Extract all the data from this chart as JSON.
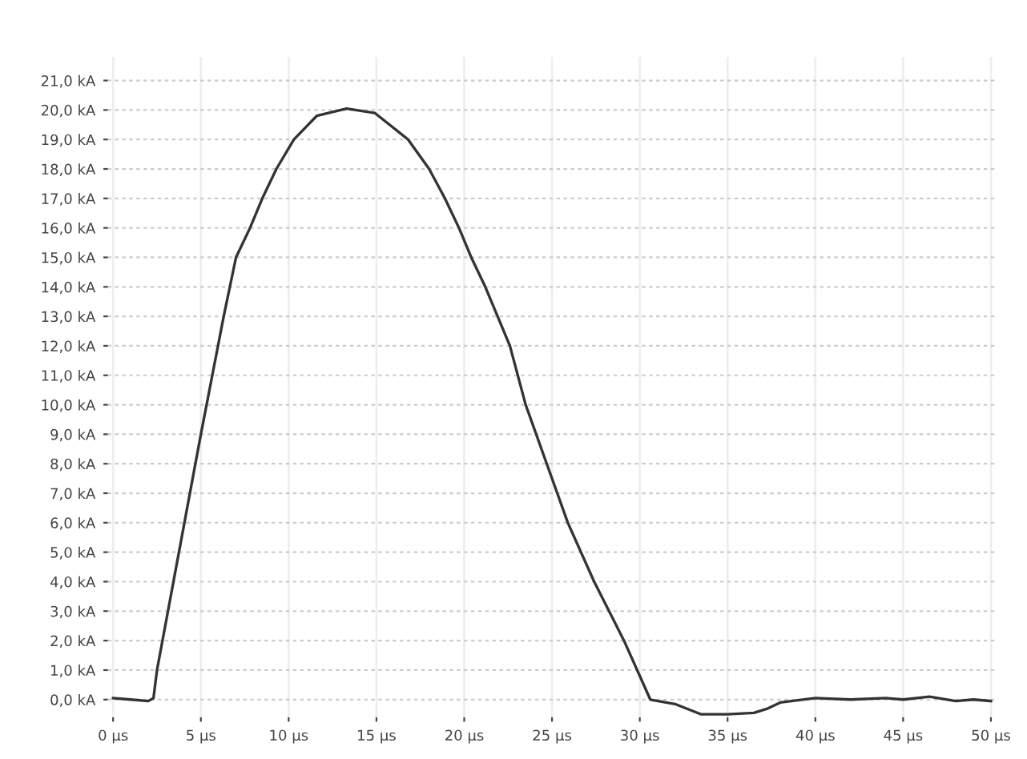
{
  "chart_data": {
    "type": "line",
    "x": [
      0,
      1,
      2,
      2.3,
      2.5,
      3.5,
      5.0,
      5.65,
      6.3,
      7.0,
      7.8,
      8.5,
      9.3,
      10.3,
      11.6,
      13.3,
      14.9,
      16.8,
      18.0,
      18.9,
      19.7,
      20.4,
      21.2,
      21.9,
      22.6,
      23.5,
      24.7,
      25.9,
      27.4,
      29.1,
      30.6,
      32,
      33.5,
      35,
      36.5,
      37.3,
      38,
      40,
      42,
      44,
      45,
      46.5,
      48,
      49,
      50
    ],
    "series": [
      {
        "color": "#333333",
        "values": [
          0.05,
          0.0,
          -0.05,
          0.05,
          1.0,
          4.2,
          9.0,
          11.0,
          13.0,
          15.0,
          16.0,
          17.0,
          18.0,
          19.0,
          19.8,
          20.05,
          19.9,
          19.0,
          18.0,
          17.0,
          16.0,
          15.0,
          14.0,
          13.0,
          12.0,
          10.0,
          8.0,
          6.0,
          4.0,
          2.0,
          0.0,
          -0.15,
          -0.5,
          -0.5,
          -0.45,
          -0.3,
          -0.1,
          0.05,
          0.0,
          0.05,
          0.0,
          0.1,
          -0.05,
          0.0,
          -0.05
        ]
      }
    ],
    "xlim": [
      -0.3,
      50.3
    ],
    "ylim": [
      -0.6,
      21.8
    ],
    "xticks": [
      {
        "value": 0,
        "label": "0 µs"
      },
      {
        "value": 5,
        "label": "5 µs"
      },
      {
        "value": 10,
        "label": "10 µs"
      },
      {
        "value": 15,
        "label": "15 µs"
      },
      {
        "value": 20,
        "label": "20 µs"
      },
      {
        "value": 25,
        "label": "25 µs"
      },
      {
        "value": 30,
        "label": "30 µs"
      },
      {
        "value": 35,
        "label": "35 µs"
      },
      {
        "value": 40,
        "label": "40 µs"
      },
      {
        "value": 45,
        "label": "45 µs"
      },
      {
        "value": 50,
        "label": "50 µs"
      }
    ],
    "yticks": [
      {
        "value": 0,
        "label": "0,0 kA"
      },
      {
        "value": 1,
        "label": "1,0 kA"
      },
      {
        "value": 2,
        "label": "2,0 kA"
      },
      {
        "value": 3,
        "label": "3,0 kA"
      },
      {
        "value": 4,
        "label": "4,0 kA"
      },
      {
        "value": 5,
        "label": "5,0 kA"
      },
      {
        "value": 6,
        "label": "6,0 kA"
      },
      {
        "value": 7,
        "label": "7,0 kA"
      },
      {
        "value": 8,
        "label": "8,0 kA"
      },
      {
        "value": 9,
        "label": "9,0 kA"
      },
      {
        "value": 10,
        "label": "10,0 kA"
      },
      {
        "value": 11,
        "label": "11,0 kA"
      },
      {
        "value": 12,
        "label": "12,0 kA"
      },
      {
        "value": 13,
        "label": "13,0 kA"
      },
      {
        "value": 14,
        "label": "14,0 kA"
      },
      {
        "value": 15,
        "label": "15,0 kA"
      },
      {
        "value": 16,
        "label": "16,0 kA"
      },
      {
        "value": 17,
        "label": "17,0 kA"
      },
      {
        "value": 18,
        "label": "18,0 kA"
      },
      {
        "value": 19,
        "label": "19,0 kA"
      },
      {
        "value": 20,
        "label": "20,0 kA"
      },
      {
        "value": 21,
        "label": "21,0 kA"
      }
    ],
    "grid": true,
    "marker": "none",
    "line_style": "solid"
  }
}
